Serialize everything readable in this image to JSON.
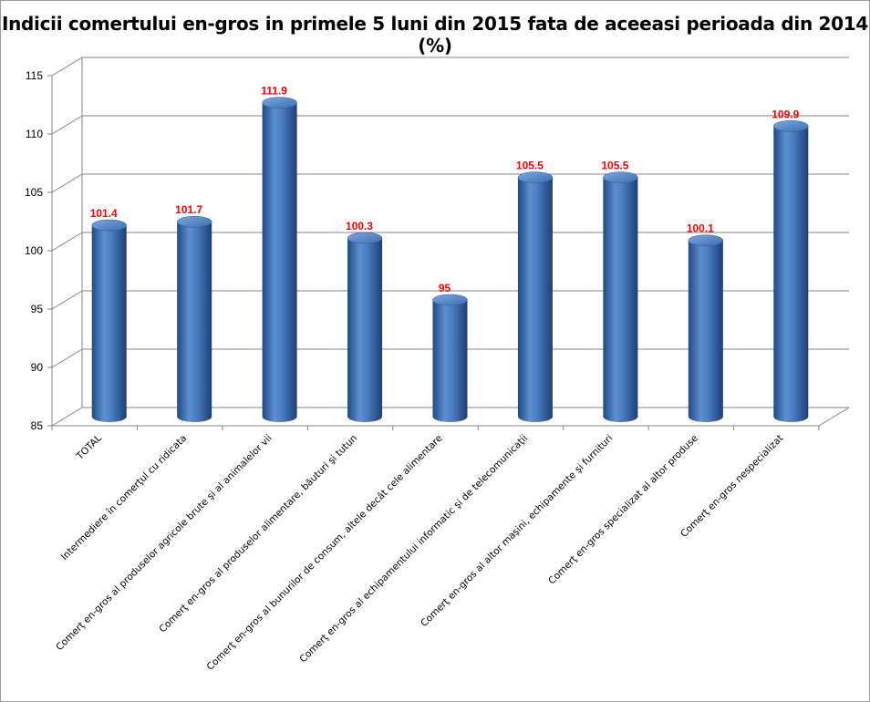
{
  "chart_data": {
    "type": "bar",
    "title": "Indicii comertului en-gros in primele 5 luni din 2015 fata de aceeasi perioada din 2014 (%)",
    "categories": [
      "TOTAL",
      "Intermediere în comerţul cu ridicata",
      "Comerţ en-gros al produselor  agricole brute şi al animalelor vii",
      "Comerţ en-gros al produselor alimentare, băuturi şi tutun",
      "Comerţ en-gros al bunurilor de consum, altele decât cele alimentare",
      "Comerţ en-gros al echipamentului informatic şi de telecomunicaţii",
      "Comerţ en-gros al altor maşini, echipamente şi furnituri",
      "Comerţ en-gros specializat al altor produse",
      "Comerţ en-gros nespecializat"
    ],
    "values": [
      101.4,
      101.7,
      111.9,
      100.3,
      95,
      105.5,
      105.5,
      100.1,
      109.9
    ],
    "data_labels": [
      "101.4",
      "101.7",
      "111.9",
      "100.3",
      "95",
      "105.5",
      "105.5",
      "100.1",
      "109.9"
    ],
    "ylim": [
      85,
      115
    ],
    "yticks": [
      "85",
      "90",
      "95",
      "100",
      "105",
      "110",
      "115"
    ],
    "xlabel": "",
    "ylabel": "",
    "grid": true,
    "legend": "none",
    "colors": {
      "bar": "#4f81bd",
      "bar_dark": "#1f4a85",
      "label": "#ff0000"
    }
  }
}
